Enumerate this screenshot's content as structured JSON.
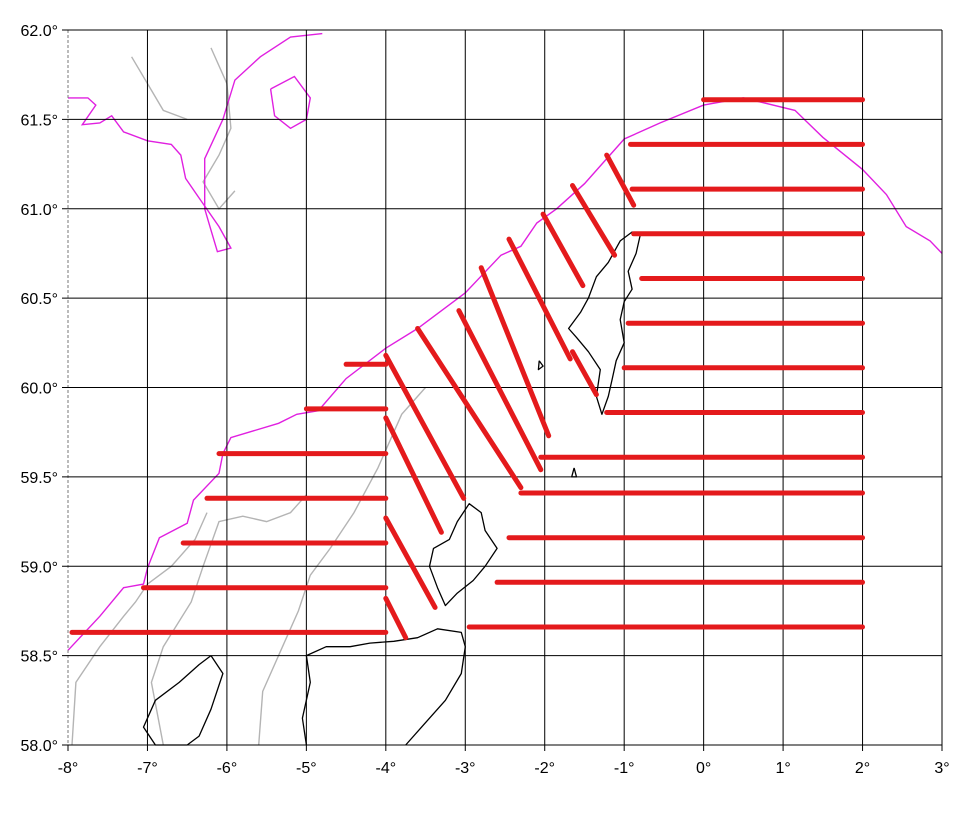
{
  "map": {
    "lon_range": [
      -8,
      3
    ],
    "lat_range": [
      58.0,
      62.0
    ],
    "x_ticks": [
      {
        "value": -8,
        "label": "-8°"
      },
      {
        "value": -7,
        "label": "-7°"
      },
      {
        "value": -6,
        "label": "-6°"
      },
      {
        "value": -5,
        "label": "-5°"
      },
      {
        "value": -4,
        "label": "-4°"
      },
      {
        "value": -3,
        "label": "-3°"
      },
      {
        "value": -2,
        "label": "-2°"
      },
      {
        "value": -1,
        "label": "-1°"
      },
      {
        "value": 0,
        "label": "0°"
      },
      {
        "value": 1,
        "label": "1°"
      },
      {
        "value": 2,
        "label": "2°"
      },
      {
        "value": 3,
        "label": "3°"
      }
    ],
    "y_ticks": [
      {
        "value": 62.0,
        "label": "62.0°"
      },
      {
        "value": 61.5,
        "label": "61.5°"
      },
      {
        "value": 61.0,
        "label": "61.0°"
      },
      {
        "value": 60.5,
        "label": "60.5°"
      },
      {
        "value": 60.0,
        "label": "60.0°"
      },
      {
        "value": 59.5,
        "label": "59.5°"
      },
      {
        "value": 59.0,
        "label": "59.0°"
      },
      {
        "value": 58.5,
        "label": "58.5°"
      }
    ],
    "x_min_label": "-8°",
    "y_min_label": "58.0°",
    "grid": true,
    "colors": {
      "grid": "#000000",
      "transects": "#e41a1c",
      "shelf_edge": "#e020e0",
      "depth_contour": "#b4b4b4",
      "coastline": "#000000"
    },
    "transects": [
      {
        "from": [
          0.0,
          61.61
        ],
        "to": [
          2.0,
          61.61
        ]
      },
      {
        "from": [
          -0.92,
          61.36
        ],
        "to": [
          2.0,
          61.36
        ]
      },
      {
        "from": [
          -0.9,
          61.11
        ],
        "to": [
          2.0,
          61.11
        ]
      },
      {
        "from": [
          -0.88,
          60.86
        ],
        "to": [
          2.0,
          60.86
        ]
      },
      {
        "from": [
          -0.78,
          60.61
        ],
        "to": [
          2.0,
          60.61
        ]
      },
      {
        "from": [
          -0.95,
          60.36
        ],
        "to": [
          2.0,
          60.36
        ]
      },
      {
        "from": [
          -1.0,
          60.11
        ],
        "to": [
          2.0,
          60.11
        ]
      },
      {
        "from": [
          -1.22,
          59.86
        ],
        "to": [
          2.0,
          59.86
        ]
      },
      {
        "from": [
          -2.05,
          59.61
        ],
        "to": [
          2.0,
          59.61
        ]
      },
      {
        "from": [
          -2.3,
          59.41
        ],
        "to": [
          2.0,
          59.41
        ]
      },
      {
        "from": [
          -2.45,
          59.16
        ],
        "to": [
          2.0,
          59.16
        ]
      },
      {
        "from": [
          -2.6,
          58.91
        ],
        "to": [
          2.0,
          58.91
        ]
      },
      {
        "from": [
          -2.95,
          58.66
        ],
        "to": [
          2.0,
          58.66
        ]
      },
      {
        "from": [
          -4.5,
          60.13
        ],
        "to": [
          -4.0,
          60.13
        ]
      },
      {
        "from": [
          -5.0,
          59.88
        ],
        "to": [
          -4.0,
          59.88
        ]
      },
      {
        "from": [
          -6.1,
          59.63
        ],
        "to": [
          -4.0,
          59.63
        ]
      },
      {
        "from": [
          -6.25,
          59.38
        ],
        "to": [
          -4.0,
          59.38
        ]
      },
      {
        "from": [
          -6.55,
          59.13
        ],
        "to": [
          -4.0,
          59.13
        ]
      },
      {
        "from": [
          -7.05,
          58.88
        ],
        "to": [
          -4.0,
          58.88
        ]
      },
      {
        "from": [
          -7.95,
          58.63
        ],
        "to": [
          -4.0,
          58.63
        ]
      },
      {
        "from": [
          -1.22,
          61.3
        ],
        "to": [
          -0.88,
          61.02
        ]
      },
      {
        "from": [
          -1.65,
          61.13
        ],
        "to": [
          -1.12,
          60.74
        ]
      },
      {
        "from": [
          -2.02,
          60.97
        ],
        "to": [
          -1.52,
          60.57
        ]
      },
      {
        "from": [
          -2.45,
          60.83
        ],
        "to": [
          -1.68,
          60.16
        ]
      },
      {
        "from": [
          -1.65,
          60.2
        ],
        "to": [
          -1.35,
          59.96
        ]
      },
      {
        "from": [
          -2.8,
          60.67
        ],
        "to": [
          -1.95,
          59.73
        ]
      },
      {
        "from": [
          -3.08,
          60.43
        ],
        "to": [
          -2.05,
          59.54
        ]
      },
      {
        "from": [
          -3.6,
          60.33
        ],
        "to": [
          -2.3,
          59.44
        ]
      },
      {
        "from": [
          -4.0,
          60.18
        ],
        "to": [
          -3.02,
          59.38
        ]
      },
      {
        "from": [
          -4.0,
          59.83
        ],
        "to": [
          -3.3,
          59.19
        ]
      },
      {
        "from": [
          -4.0,
          59.27
        ],
        "to": [
          -3.38,
          58.77
        ]
      },
      {
        "from": [
          -4.0,
          58.82
        ],
        "to": [
          -3.75,
          58.6
        ]
      }
    ],
    "shelf_edge": [
      [
        -8.0,
        58.53
      ],
      [
        -7.6,
        58.72
      ],
      [
        -7.3,
        58.88
      ],
      [
        -7.05,
        58.9
      ],
      [
        -7.0,
        58.99
      ],
      [
        -6.85,
        59.16
      ],
      [
        -6.5,
        59.24
      ],
      [
        -6.42,
        59.37
      ],
      [
        -6.1,
        59.52
      ],
      [
        -6.05,
        59.63
      ],
      [
        -5.95,
        59.72
      ],
      [
        -5.35,
        59.8
      ],
      [
        -5.12,
        59.85
      ],
      [
        -4.85,
        59.87
      ],
      [
        -4.5,
        60.05
      ],
      [
        -4.0,
        60.22
      ],
      [
        -3.6,
        60.33
      ],
      [
        -3.0,
        60.53
      ],
      [
        -2.55,
        60.74
      ],
      [
        -2.3,
        60.79
      ],
      [
        -2.1,
        60.92
      ],
      [
        -1.85,
        61.0
      ],
      [
        -1.5,
        61.14
      ],
      [
        -1.0,
        61.39
      ],
      [
        -0.55,
        61.48
      ],
      [
        0.0,
        61.58
      ],
      [
        0.5,
        61.62
      ],
      [
        1.15,
        61.55
      ],
      [
        1.5,
        61.4
      ],
      [
        2.0,
        61.22
      ],
      [
        2.3,
        61.08
      ],
      [
        2.55,
        60.9
      ],
      [
        2.85,
        60.82
      ],
      [
        3.0,
        60.75
      ]
    ],
    "shelf_edge_nw": [
      [
        -8.0,
        61.62
      ],
      [
        -7.75,
        61.62
      ],
      [
        -7.65,
        61.58
      ],
      [
        -7.82,
        61.47
      ],
      [
        -7.6,
        61.48
      ],
      [
        -7.45,
        61.52
      ],
      [
        -7.3,
        61.43
      ],
      [
        -7.0,
        61.38
      ],
      [
        -6.7,
        61.36
      ],
      [
        -6.58,
        61.3
      ],
      [
        -6.52,
        61.17
      ],
      [
        -6.35,
        61.06
      ],
      [
        -6.1,
        60.9
      ],
      [
        -6.0,
        60.82
      ],
      [
        -5.95,
        60.78
      ],
      [
        -6.12,
        60.76
      ],
      [
        -6.2,
        60.88
      ],
      [
        -6.28,
        61.0
      ],
      [
        -6.28,
        61.28
      ],
      [
        -6.05,
        61.5
      ],
      [
        -5.9,
        61.72
      ],
      [
        -5.58,
        61.85
      ],
      [
        -5.2,
        61.96
      ],
      [
        -4.8,
        61.98
      ]
    ],
    "shelf_edge_loop": [
      [
        -5.45,
        61.67
      ],
      [
        -5.15,
        61.74
      ],
      [
        -4.95,
        61.62
      ],
      [
        -5.0,
        61.5
      ],
      [
        -5.2,
        61.45
      ],
      [
        -5.4,
        61.52
      ],
      [
        -5.45,
        61.67
      ]
    ],
    "depth_contours": [
      [
        [
          -7.95,
          58.0
        ],
        [
          -7.9,
          58.35
        ],
        [
          -7.6,
          58.55
        ],
        [
          -7.3,
          58.72
        ],
        [
          -7.15,
          58.8
        ],
        [
          -7.0,
          58.9
        ],
        [
          -6.7,
          59.0
        ],
        [
          -6.4,
          59.15
        ],
        [
          -6.25,
          59.3
        ]
      ],
      [
        [
          -6.8,
          58.0
        ],
        [
          -6.95,
          58.35
        ],
        [
          -6.8,
          58.55
        ],
        [
          -6.45,
          58.8
        ],
        [
          -6.3,
          59.0
        ],
        [
          -6.1,
          59.25
        ],
        [
          -5.8,
          59.28
        ],
        [
          -5.5,
          59.25
        ],
        [
          -5.2,
          59.3
        ],
        [
          -5.0,
          59.4
        ]
      ],
      [
        [
          -5.6,
          58.0
        ],
        [
          -5.55,
          58.3
        ],
        [
          -5.3,
          58.55
        ],
        [
          -5.1,
          58.75
        ],
        [
          -4.95,
          58.95
        ],
        [
          -4.7,
          59.1
        ],
        [
          -4.4,
          59.3
        ],
        [
          -4.1,
          59.55
        ],
        [
          -3.8,
          59.85
        ],
        [
          -3.5,
          60.0
        ]
      ],
      [
        [
          -6.2,
          61.9
        ],
        [
          -6.0,
          61.7
        ],
        [
          -5.95,
          61.45
        ],
        [
          -6.1,
          61.3
        ],
        [
          -6.3,
          61.15
        ],
        [
          -6.1,
          61.0
        ],
        [
          -5.9,
          61.1
        ]
      ],
      [
        [
          -7.2,
          61.85
        ],
        [
          -7.0,
          61.7
        ],
        [
          -6.8,
          61.55
        ],
        [
          -6.5,
          61.5
        ]
      ]
    ],
    "coastlines": {
      "shetland": [
        [
          -0.8,
          60.85
        ],
        [
          -0.85,
          60.75
        ],
        [
          -0.95,
          60.65
        ],
        [
          -0.9,
          60.55
        ],
        [
          -1.0,
          60.48
        ],
        [
          -1.05,
          60.38
        ],
        [
          -1.0,
          60.25
        ],
        [
          -1.1,
          60.15
        ],
        [
          -1.15,
          60.05
        ],
        [
          -1.2,
          59.95
        ],
        [
          -1.28,
          59.85
        ],
        [
          -1.35,
          59.95
        ],
        [
          -1.3,
          60.1
        ],
        [
          -1.45,
          60.2
        ],
        [
          -1.6,
          60.28
        ],
        [
          -1.7,
          60.33
        ],
        [
          -1.55,
          60.42
        ],
        [
          -1.45,
          60.5
        ],
        [
          -1.35,
          60.62
        ],
        [
          -1.2,
          60.7
        ],
        [
          -1.05,
          60.82
        ],
        [
          -0.9,
          60.87
        ],
        [
          -0.8,
          60.85
        ]
      ],
      "orkney": [
        [
          -3.45,
          59.0
        ],
        [
          -3.4,
          59.1
        ],
        [
          -3.2,
          59.15
        ],
        [
          -3.1,
          59.25
        ],
        [
          -2.95,
          59.35
        ],
        [
          -2.8,
          59.3
        ],
        [
          -2.75,
          59.2
        ],
        [
          -2.6,
          59.1
        ],
        [
          -2.75,
          59.0
        ],
        [
          -2.9,
          58.92
        ],
        [
          -3.1,
          58.85
        ],
        [
          -3.25,
          58.78
        ],
        [
          -3.35,
          58.88
        ],
        [
          -3.45,
          59.0
        ]
      ],
      "scotland": [
        [
          -5.0,
          58.0
        ],
        [
          -5.05,
          58.15
        ],
        [
          -4.95,
          58.35
        ],
        [
          -5.0,
          58.5
        ],
        [
          -4.75,
          58.55
        ],
        [
          -4.45,
          58.55
        ],
        [
          -4.2,
          58.57
        ],
        [
          -3.9,
          58.58
        ],
        [
          -3.6,
          58.6
        ],
        [
          -3.35,
          58.65
        ],
        [
          -3.05,
          58.63
        ],
        [
          -3.0,
          58.55
        ],
        [
          -3.05,
          58.4
        ],
        [
          -3.25,
          58.25
        ],
        [
          -3.55,
          58.1
        ],
        [
          -3.75,
          58.0
        ]
      ],
      "lewis": [
        [
          -6.2,
          58.5
        ],
        [
          -6.05,
          58.4
        ],
        [
          -6.2,
          58.2
        ],
        [
          -6.35,
          58.05
        ],
        [
          -6.5,
          58.0
        ],
        [
          -6.9,
          58.0
        ],
        [
          -7.05,
          58.1
        ],
        [
          -6.9,
          58.25
        ],
        [
          -6.6,
          58.35
        ],
        [
          -6.35,
          58.45
        ],
        [
          -6.2,
          58.5
        ]
      ],
      "fair_isle": [
        [
          -1.63,
          59.55
        ],
        [
          -1.6,
          59.5
        ],
        [
          -1.66,
          59.5
        ],
        [
          -1.63,
          59.55
        ]
      ],
      "foula": [
        [
          -2.07,
          60.15
        ],
        [
          -2.02,
          60.12
        ],
        [
          -2.08,
          60.1
        ],
        [
          -2.07,
          60.15
        ]
      ]
    }
  }
}
